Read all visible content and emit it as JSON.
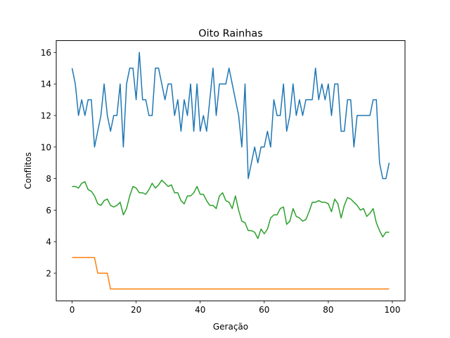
{
  "chart_data": {
    "type": "line",
    "title": "Oito Rainhas",
    "xlabel": "Geração",
    "ylabel": "Conflitos",
    "xlim": [
      -4.95,
      103.95
    ],
    "ylim": [
      0.25,
      16.75
    ],
    "xticks": [
      0,
      20,
      40,
      60,
      80,
      100
    ],
    "yticks": [
      2,
      4,
      6,
      8,
      10,
      12,
      14,
      16
    ],
    "grid": false,
    "legend": null,
    "x": [
      0,
      1,
      2,
      3,
      4,
      5,
      6,
      7,
      8,
      9,
      10,
      11,
      12,
      13,
      14,
      15,
      16,
      17,
      18,
      19,
      20,
      21,
      22,
      23,
      24,
      25,
      26,
      27,
      28,
      29,
      30,
      31,
      32,
      33,
      34,
      35,
      36,
      37,
      38,
      39,
      40,
      41,
      42,
      43,
      44,
      45,
      46,
      47,
      48,
      49,
      50,
      51,
      52,
      53,
      54,
      55,
      56,
      57,
      58,
      59,
      60,
      61,
      62,
      63,
      64,
      65,
      66,
      67,
      68,
      69,
      70,
      71,
      72,
      73,
      74,
      75,
      76,
      77,
      78,
      79,
      80,
      81,
      82,
      83,
      84,
      85,
      86,
      87,
      88,
      89,
      90,
      91,
      92,
      93,
      94,
      95,
      96,
      97,
      98,
      99
    ],
    "series": [
      {
        "color": "#1f77b4",
        "values": [
          15,
          14,
          12,
          13,
          12,
          13,
          13,
          10,
          11,
          12,
          14,
          12,
          11,
          12,
          12,
          14,
          10,
          14,
          15,
          15,
          13,
          16,
          13,
          13,
          12,
          12,
          15,
          15,
          14,
          13,
          14,
          14,
          12,
          13,
          11,
          13,
          12,
          14,
          11,
          14,
          11,
          12,
          11,
          13,
          15,
          12,
          14,
          14,
          14,
          15,
          14,
          13,
          12,
          10,
          14,
          8,
          9,
          10,
          9,
          10,
          10,
          11,
          10,
          13,
          12,
          12,
          14,
          11,
          12,
          14,
          12,
          13,
          12,
          13,
          13,
          13,
          15,
          13,
          14,
          13,
          14,
          12,
          14,
          14,
          11,
          11,
          13,
          13,
          10,
          12,
          12,
          12,
          12,
          12,
          13,
          13,
          9,
          8,
          8,
          9
        ]
      },
      {
        "color": "#ff7f0e",
        "values": [
          3,
          3,
          3,
          3,
          3,
          3,
          3,
          3,
          2,
          2,
          2,
          2,
          1,
          1,
          1,
          1,
          1,
          1,
          1,
          1,
          1,
          1,
          1,
          1,
          1,
          1,
          1,
          1,
          1,
          1,
          1,
          1,
          1,
          1,
          1,
          1,
          1,
          1,
          1,
          1,
          1,
          1,
          1,
          1,
          1,
          1,
          1,
          1,
          1,
          1,
          1,
          1,
          1,
          1,
          1,
          1,
          1,
          1,
          1,
          1,
          1,
          1,
          1,
          1,
          1,
          1,
          1,
          1,
          1,
          1,
          1,
          1,
          1,
          1,
          1,
          1,
          1,
          1,
          1,
          1,
          1,
          1,
          1,
          1,
          1,
          1,
          1,
          1,
          1,
          1,
          1,
          1,
          1,
          1,
          1,
          1,
          1,
          1,
          1,
          1
        ]
      },
      {
        "color": "#2ca02c",
        "values": [
          7.5,
          7.5,
          7.4,
          7.7,
          7.8,
          7.3,
          7.2,
          6.9,
          6.4,
          6.3,
          6.6,
          6.7,
          6.3,
          6.2,
          6.3,
          6.5,
          5.7,
          6.1,
          6.9,
          7.5,
          7.4,
          7.1,
          7.1,
          7.0,
          7.3,
          7.7,
          7.4,
          7.6,
          7.9,
          7.7,
          7.5,
          7.6,
          7.1,
          7.1,
          6.6,
          6.4,
          6.9,
          6.9,
          7.1,
          7.5,
          7.0,
          7.0,
          6.6,
          6.3,
          6.3,
          6.1,
          6.9,
          7.1,
          6.6,
          6.5,
          6.1,
          6.9,
          6.0,
          5.3,
          5.2,
          4.7,
          4.7,
          4.6,
          4.2,
          4.8,
          4.5,
          4.8,
          5.5,
          5.7,
          5.7,
          6.1,
          6.2,
          5.1,
          5.3,
          6.1,
          5.6,
          5.5,
          5.3,
          5.4,
          5.9,
          6.5,
          6.5,
          6.6,
          6.5,
          6.5,
          6.4,
          5.9,
          6.7,
          6.4,
          5.5,
          6.3,
          6.8,
          6.7,
          6.5,
          6.3,
          6.0,
          6.1,
          5.6,
          5.8,
          6.1,
          5.2,
          4.7,
          4.3,
          4.6,
          4.6
        ]
      }
    ]
  }
}
